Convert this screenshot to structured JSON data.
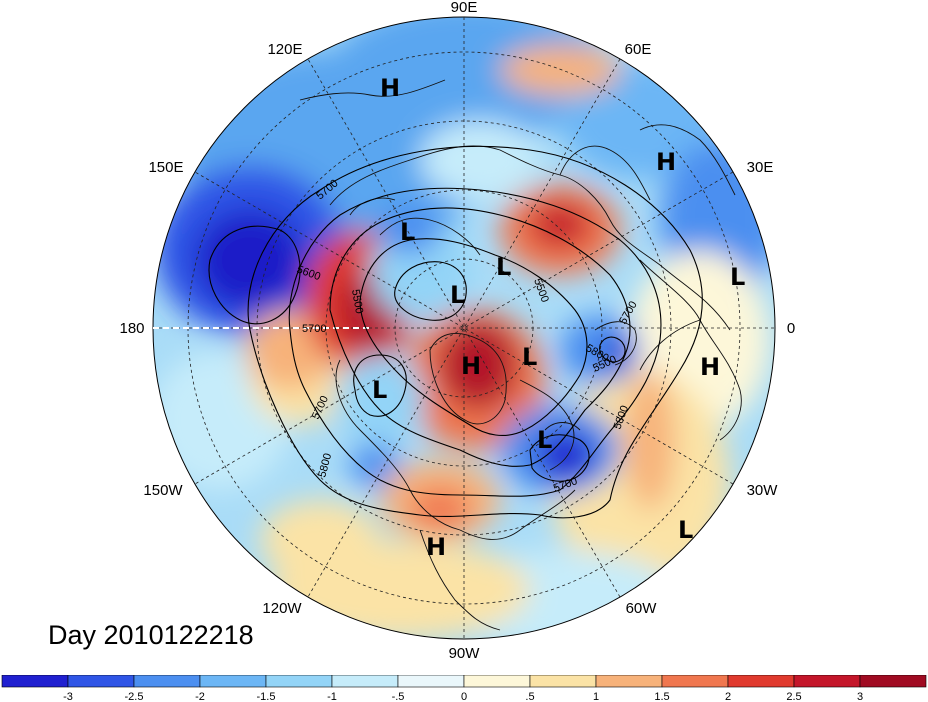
{
  "date_label": "Day 2010122218",
  "longitude_labels": [
    "90E",
    "60E",
    "30E",
    "0",
    "30W",
    "60W",
    "90W",
    "120W",
    "150W",
    "180",
    "150E",
    "120E"
  ],
  "pressure_centers": [
    {
      "type": "H",
      "label": "H"
    },
    {
      "type": "H",
      "label": "H"
    },
    {
      "type": "H",
      "label": "H"
    },
    {
      "type": "H",
      "label": "H"
    },
    {
      "type": "H",
      "label": "H"
    },
    {
      "type": "L",
      "label": "L"
    },
    {
      "type": "L",
      "label": "L"
    },
    {
      "type": "L",
      "label": "L"
    },
    {
      "type": "L",
      "label": "L"
    },
    {
      "type": "L",
      "label": "L"
    },
    {
      "type": "L",
      "label": "L"
    },
    {
      "type": "L",
      "label": "L"
    },
    {
      "type": "L",
      "label": "L"
    }
  ],
  "contour_labels": [
    "5700",
    "5600",
    "5500",
    "5700",
    "5700",
    "5800",
    "5700",
    "5500",
    "5500",
    "5800",
    "5700",
    "5800"
  ],
  "colorbar": {
    "labels": [
      "-3",
      "-2.5",
      "-2",
      "-1.5",
      "-1",
      "-.5",
      "0",
      ".5",
      "1",
      "1.5",
      "2",
      "2.5",
      "3"
    ],
    "colors": [
      "#2020d0",
      "#2f55e6",
      "#4c8ff0",
      "#6cb6f5",
      "#93d4f7",
      "#c6ecfa",
      "#eaf7fb",
      "#fdf7d9",
      "#fbe3a6",
      "#f7b27a",
      "#f0774f",
      "#e03a2e",
      "#c4162a",
      "#a00b22"
    ]
  }
}
